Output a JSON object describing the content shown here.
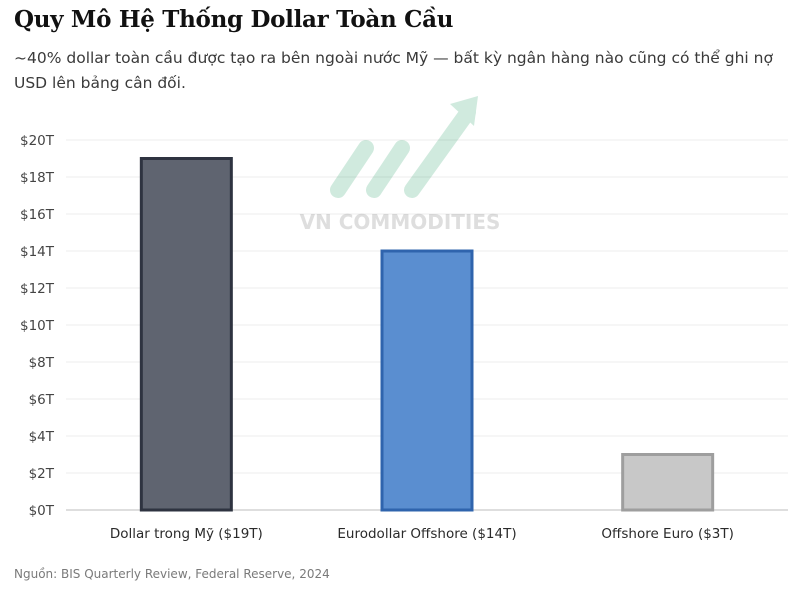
{
  "header": {
    "title": "Quy Mô Hệ Thống Dollar Toàn Cầu",
    "subtitle": "~40% dollar toàn cầu được tạo ra bên ngoài nước Mỹ — bất kỳ ngân hàng nào cũng có thể ghi nợ USD lên bảng cân đối."
  },
  "watermark": {
    "text": "VN COMMODITIES",
    "icon": "arrow-up-logo-icon"
  },
  "footer": {
    "source": "Nguồn: BIS Quarterly Review, Federal Reserve, 2024"
  },
  "chart_data": {
    "type": "bar",
    "categories": [
      "Dollar trong Mỹ ($19T)",
      "Eurodollar Offshore ($14T)",
      "Offshore Euro ($3T)"
    ],
    "values": [
      19,
      14,
      3
    ],
    "unit": "T",
    "ylim": [
      0,
      20
    ],
    "yticks": [
      0,
      2,
      4,
      6,
      8,
      10,
      12,
      14,
      16,
      18,
      20
    ],
    "ytick_labels": [
      "$0T",
      "$2T",
      "$4T",
      "$6T",
      "$8T",
      "$10T",
      "$12T",
      "$14T",
      "$16T",
      "$18T",
      "$20T"
    ],
    "grid": true,
    "colors": [
      "#5f6470",
      "#5a8ed0",
      "#c8c8c8"
    ],
    "edge_colors": [
      "#2e3340",
      "#2f64ad",
      "#9e9e9e"
    ]
  }
}
